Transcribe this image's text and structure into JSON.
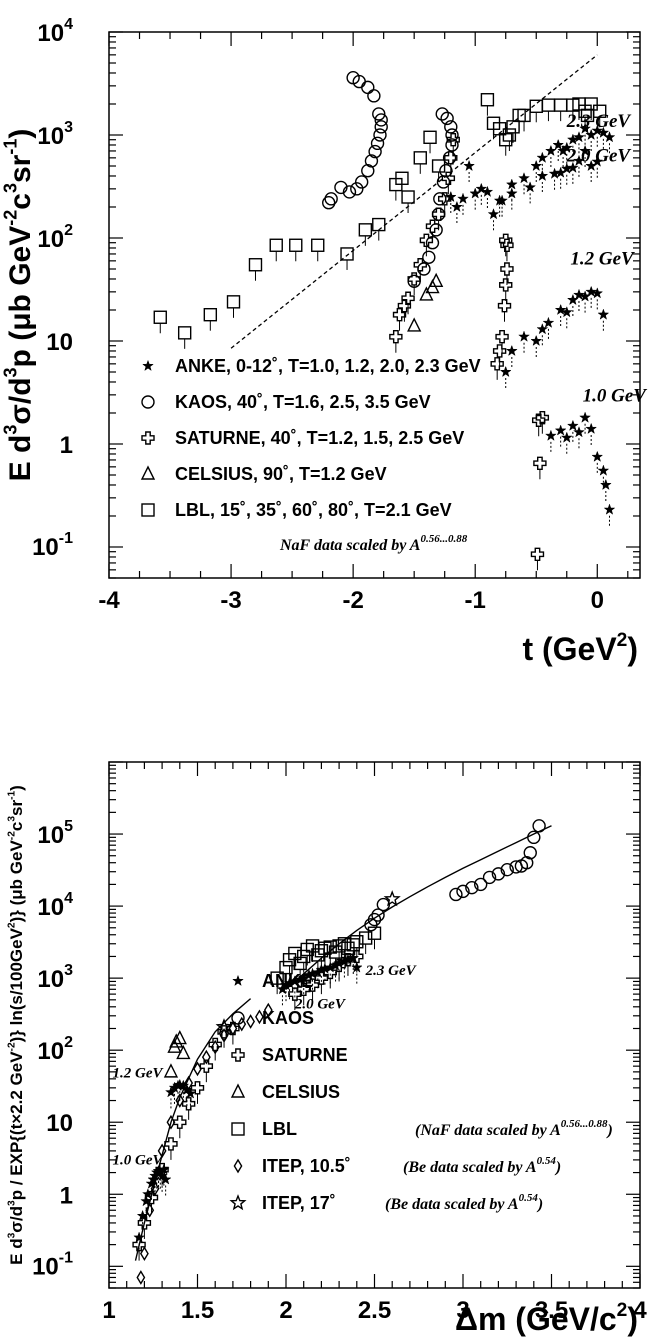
{
  "chart_data": [
    {
      "type": "scatter",
      "xlabel": "t (GeV",
      "xlabel_sup": "2",
      "xlabel_close": ")",
      "ylabel_parts": [
        "E d",
        "3",
        "σ/d",
        "3",
        "p (μb GeV",
        "-2",
        "c",
        "3",
        "sr",
        "-1",
        ")"
      ],
      "xlim": [
        -4,
        0.35
      ],
      "ylim": [
        0.05,
        10000
      ],
      "yscale": "log",
      "x_ticks": [
        {
          "v": -4,
          "label": "-4"
        },
        {
          "v": -3,
          "label": "-3"
        },
        {
          "v": -2,
          "label": "-2"
        },
        {
          "v": -1,
          "label": "-1"
        },
        {
          "v": 0,
          "label": "0"
        }
      ],
      "y_ticks": [
        {
          "v": 10000,
          "label": "10",
          "sup": "4"
        },
        {
          "v": 1000,
          "label": "10",
          "sup": "3"
        },
        {
          "v": 100,
          "label": "10",
          "sup": "2"
        },
        {
          "v": 10,
          "label": "10",
          "sup": ""
        },
        {
          "v": 1,
          "label": "1",
          "sup": ""
        },
        {
          "v": 0.1,
          "label": "10",
          "sup": "-1"
        }
      ],
      "legend_position": "bottom-left",
      "legend": [
        {
          "marker": "star",
          "label": "ANKE, 0-12˚, T=1.0, 1.2, 2.0, 2.3 GeV"
        },
        {
          "marker": "circle",
          "label": "KAOS, 40˚, T=1.6, 2.5, 3.5 GeV"
        },
        {
          "marker": "cross",
          "label": "SATURNE, 40˚, T=1.2, 1.5, 2.5 GeV"
        },
        {
          "marker": "triangle",
          "label": "CELSIUS, 90˚, T=1.2 GeV"
        },
        {
          "marker": "square",
          "label": "LBL, 15˚, 35˚, 60˚, 80˚, T=2.1 GeV"
        }
      ],
      "note": {
        "text": "NaF data scaled by A",
        "sup": "0.56...0.88"
      },
      "annotations": [
        {
          "text": "2.3 GeV",
          "x": -0.25,
          "y": 1200
        },
        {
          "text": "2.0 GeV",
          "x": -0.25,
          "y": 550
        },
        {
          "text": "1.2 GeV",
          "x": -0.22,
          "y": 55
        },
        {
          "text": "1.0 GeV",
          "x": -0.12,
          "y": 2.6
        }
      ],
      "fit_line": {
        "style": "dashed",
        "points": [
          [
            -3.0,
            8.5
          ],
          [
            0.0,
            6000
          ]
        ]
      },
      "series": [
        {
          "marker": "circle",
          "x": [
            -2.0,
            -1.95,
            -1.88,
            -1.83,
            -1.79,
            -1.77,
            -1.77,
            -1.78,
            -1.8,
            -1.82,
            -1.85,
            -1.88,
            -1.93,
            -1.97,
            -2.03,
            -2.1,
            -2.18,
            -2.2,
            -1.27,
            -1.23,
            -1.2,
            -1.19,
            -1.19,
            -1.21,
            -1.24,
            -1.26,
            -1.29,
            -1.3,
            -1.32,
            -1.35,
            -1.38,
            -1.42,
            -1.5
          ],
          "y": [
            3600,
            3300,
            2900,
            2400,
            1600,
            1400,
            1200,
            1000,
            830,
            690,
            560,
            450,
            350,
            300,
            280,
            310,
            240,
            220,
            1600,
            1450,
            1200,
            1000,
            800,
            600,
            450,
            350,
            240,
            170,
            120,
            90,
            65,
            50,
            38
          ]
        },
        {
          "marker": "square",
          "x": [
            -3.58,
            -3.38,
            -3.17,
            -2.98,
            -2.8,
            -2.63,
            -2.47,
            -2.29,
            -2.05,
            -1.9,
            -1.79,
            -1.65,
            -1.6,
            -1.55,
            -1.45,
            -1.37,
            -1.3,
            -0.9,
            -0.85,
            -0.8,
            -0.75,
            -0.72,
            -0.69,
            -0.64,
            -0.6,
            -0.5,
            -0.4,
            -0.3,
            -0.2,
            -0.15,
            -0.1,
            -0.05,
            0.02,
            -0.08
          ],
          "y": [
            17,
            12,
            18,
            24,
            55,
            85,
            85,
            85,
            70,
            120,
            135,
            330,
            380,
            250,
            600,
            950,
            500,
            2200,
            1300,
            1150,
            900,
            1000,
            1200,
            1550,
            1550,
            1900,
            1950,
            1950,
            1950,
            2000,
            1700,
            2000,
            1700,
            1550
          ]
        },
        {
          "marker": "cross",
          "x": [
            -1.65,
            -1.62,
            -1.58,
            -1.55,
            -1.5,
            -1.45,
            -1.4,
            -1.35,
            -1.3,
            -1.25,
            -1.22,
            -1.2,
            -1.18,
            -0.75,
            -0.74,
            -0.74,
            -0.75,
            -0.76,
            -0.78,
            -0.8,
            -0.82,
            -0.48,
            -0.47,
            -0.45,
            -0.49
          ],
          "y": [
            11,
            18,
            22,
            26,
            40,
            55,
            95,
            130,
            170,
            240,
            380,
            600,
            900,
            95,
            85,
            50,
            35,
            22,
            11,
            8,
            6,
            1.7,
            0.65,
            1.8,
            0.085
          ]
        },
        {
          "marker": "triangle",
          "x": [
            -1.5,
            -1.4,
            -1.35,
            -1.32
          ],
          "y": [
            14,
            28,
            33,
            38
          ]
        },
        {
          "marker": "star",
          "x": [
            -1.05,
            -0.95,
            -0.85,
            -0.78,
            -0.7,
            -0.6,
            -0.5,
            -0.45,
            -0.38,
            -0.32,
            -0.28,
            -0.25,
            -0.2,
            -0.15,
            -0.1,
            -0.05,
            0.0,
            0.05,
            0.1,
            -1.2,
            -1.15,
            -1.1,
            -1.0,
            -0.9,
            -0.8,
            -0.7,
            -0.55,
            -0.45,
            -0.35,
            -0.3,
            -0.25,
            -0.2,
            -0.15,
            -0.1,
            -0.05,
            0.0,
            -0.75,
            -0.7,
            -0.6,
            -0.5,
            -0.45,
            -0.4,
            -0.3,
            -0.25,
            -0.2,
            -0.15,
            -0.1,
            -0.05,
            0.0,
            0.05,
            -0.38,
            -0.3,
            -0.25,
            -0.2,
            -0.15,
            -0.1,
            -0.05,
            0.0,
            0.05,
            0.07,
            0.1
          ],
          "y": [
            500,
            300,
            170,
            230,
            330,
            380,
            500,
            600,
            700,
            800,
            700,
            750,
            900,
            950,
            1150,
            1000,
            1100,
            1050,
            950,
            250,
            200,
            240,
            270,
            280,
            230,
            270,
            310,
            400,
            420,
            430,
            470,
            480,
            560,
            700,
            500,
            550,
            5,
            8,
            11,
            10,
            13,
            15,
            20,
            19,
            25,
            28,
            27,
            30,
            29,
            18,
            1.2,
            1.35,
            1.15,
            1.5,
            1.3,
            1.8,
            1.4,
            0.75,
            0.55,
            0.4,
            0.23
          ]
        }
      ]
    },
    {
      "type": "scatter",
      "xlabel": "Δm (GeV/c",
      "xlabel_sup": "2",
      "xlabel_close": ")",
      "ylabel_parts": [
        "E d",
        "3",
        "σ/d",
        "3",
        "p / EXP{(t×2.2 GeV",
        "-2",
        ")} ln(s/100GeV",
        "2",
        ")} (μb GeV",
        "-2",
        "c",
        "3",
        "sr",
        "-1",
        ")"
      ],
      "xlim": [
        1,
        4
      ],
      "ylim": [
        0.05,
        1000000
      ],
      "yscale": "log",
      "x_ticks": [
        {
          "v": 1,
          "label": "1"
        },
        {
          "v": 1.5,
          "label": "1.5"
        },
        {
          "v": 2,
          "label": "2"
        },
        {
          "v": 2.5,
          "label": "2.5"
        },
        {
          "v": 3,
          "label": "3"
        },
        {
          "v": 3.5,
          "label": "3.5"
        },
        {
          "v": 4,
          "label": "4"
        }
      ],
      "y_ticks": [
        {
          "v": 100000,
          "label": "10",
          "sup": "5"
        },
        {
          "v": 10000,
          "label": "10",
          "sup": "4"
        },
        {
          "v": 1000,
          "label": "10",
          "sup": "3"
        },
        {
          "v": 100,
          "label": "10",
          "sup": "2"
        },
        {
          "v": 10,
          "label": "10",
          "sup": ""
        },
        {
          "v": 1,
          "label": "1",
          "sup": ""
        },
        {
          "v": 0.1,
          "label": "10",
          "sup": "-1"
        }
      ],
      "legend_position": "bottom-center",
      "legend": [
        {
          "marker": "star",
          "label": "ANKE",
          "note": "",
          "note_sup": ""
        },
        {
          "marker": "circle",
          "label": "KAOS",
          "note": "",
          "note_sup": ""
        },
        {
          "marker": "cross",
          "label": "SATURNE",
          "note": "",
          "note_sup": ""
        },
        {
          "marker": "triangle",
          "label": "CELSIUS",
          "note": "",
          "note_sup": ""
        },
        {
          "marker": "square",
          "label": "LBL",
          "note": "(NaF data scaled by A",
          "note_sup": "0.56...0.88",
          "note_close": ")"
        },
        {
          "marker": "diamond",
          "label": "ITEP, 10.5˚",
          "note": "(Be data scaled by A",
          "note_sup": "0.54",
          "note_close": ")"
        },
        {
          "marker": "openstar",
          "label": "ITEP, 17˚",
          "note": "(Be data scaled by A",
          "note_sup": "0.54",
          "note_close": ")"
        }
      ],
      "annotations": [
        {
          "text": "2.3 GeV",
          "x": 2.45,
          "y": 1100
        },
        {
          "text": "2.0 GeV",
          "x": 2.05,
          "y": 380
        },
        {
          "text": "1.2 GeV",
          "x": 1.02,
          "y": 42
        },
        {
          "text": "1.0 GeV",
          "x": 1.02,
          "y": 2.6
        }
      ],
      "fit_curves": [
        {
          "x": [
            1.15,
            1.2,
            1.25,
            1.3,
            1.35,
            1.4,
            1.5,
            1.6,
            1.7,
            1.8
          ],
          "y": [
            0.12,
            0.4,
            1.2,
            3.5,
            10,
            22,
            75,
            180,
            320,
            520
          ]
        },
        {
          "x": [
            2.0,
            2.1,
            2.2,
            2.3,
            2.4,
            2.5,
            2.6,
            2.7,
            2.8,
            2.9,
            3.0,
            3.1,
            3.2,
            3.3,
            3.4,
            3.5
          ],
          "y": [
            700,
            1150,
            1900,
            3000,
            4600,
            6800,
            9700,
            13500,
            18500,
            25000,
            33500,
            44000,
            58000,
            76000,
            100000,
            130000
          ]
        }
      ],
      "series": [
        {
          "marker": "star",
          "x": [
            1.17,
            1.19,
            1.21,
            1.22,
            1.24,
            1.25,
            1.26,
            1.27,
            1.28,
            1.29,
            1.3,
            1.31,
            1.32,
            1.35,
            1.37,
            1.39,
            1.4,
            1.42,
            1.44,
            1.46,
            1.98,
            2.0,
            2.02,
            2.05,
            2.08,
            2.1,
            2.13,
            2.15,
            2.18,
            2.2,
            2.22,
            2.25,
            2.28,
            2.3,
            2.33,
            2.35,
            2.38,
            2.4
          ],
          "y": [
            0.25,
            0.5,
            0.8,
            1.0,
            1.4,
            1.6,
            1.8,
            2.0,
            2.1,
            2.0,
            1.8,
            2.2,
            1.6,
            26,
            30,
            32,
            33,
            32,
            28,
            25,
            700,
            800,
            850,
            900,
            950,
            1000,
            1100,
            1150,
            1200,
            1300,
            1350,
            1400,
            1500,
            1600,
            1700,
            1800,
            1900,
            1400
          ]
        },
        {
          "marker": "circle",
          "x": [
            2.48,
            2.5,
            2.52,
            2.55,
            2.96,
            3.0,
            3.05,
            3.1,
            3.15,
            3.2,
            3.25,
            3.3,
            3.33,
            3.36,
            3.38,
            3.4,
            3.43
          ],
          "y": [
            5500,
            6500,
            7500,
            10500,
            14500,
            16000,
            18000,
            20000,
            25000,
            28000,
            32000,
            35000,
            36000,
            40000,
            55000,
            90000,
            130000
          ]
        },
        {
          "marker": "cross",
          "x": [
            1.17,
            1.2,
            1.24,
            1.3,
            1.35,
            1.4,
            1.45,
            1.5,
            1.55,
            1.6,
            1.65,
            1.7,
            2.05,
            2.1,
            2.15,
            2.2,
            2.25,
            2.3,
            2.35,
            2.4
          ],
          "y": [
            0.2,
            0.4,
            0.9,
            2.2,
            5,
            10,
            18,
            30,
            60,
            120,
            180,
            200,
            600,
            700,
            800,
            1000,
            1200,
            1500,
            1800,
            2000
          ]
        },
        {
          "marker": "triangle",
          "x": [
            1.35,
            1.37,
            1.38,
            1.4,
            1.42
          ],
          "y": [
            50,
            110,
            130,
            145,
            90
          ]
        },
        {
          "marker": "square",
          "x": [
            1.95,
            2.0,
            2.02,
            2.05,
            2.08,
            2.1,
            2.12,
            2.15,
            2.18,
            2.2,
            2.22,
            2.25,
            2.28,
            2.3,
            2.33,
            2.35,
            2.38,
            2.4,
            2.45,
            2.5
          ],
          "y": [
            1000,
            1400,
            1800,
            2200,
            1600,
            2000,
            2500,
            2800,
            2100,
            2400,
            2600,
            2700,
            2300,
            2800,
            3000,
            2600,
            2900,
            3200,
            3600,
            4200
          ]
        },
        {
          "marker": "diamond",
          "x": [
            1.18,
            1.2,
            1.23,
            1.26,
            1.3,
            1.35,
            1.4,
            1.45,
            1.5,
            1.55,
            1.6,
            1.65,
            1.7,
            1.75,
            1.8,
            1.85,
            1.9
          ],
          "y": [
            0.07,
            0.15,
            0.6,
            1.2,
            4,
            10,
            20,
            35,
            55,
            80,
            110,
            160,
            200,
            230,
            250,
            290,
            360
          ]
        },
        {
          "marker": "openstar",
          "x": [
            1.65,
            2.6
          ],
          "y": [
            210,
            12500
          ]
        }
      ]
    }
  ]
}
